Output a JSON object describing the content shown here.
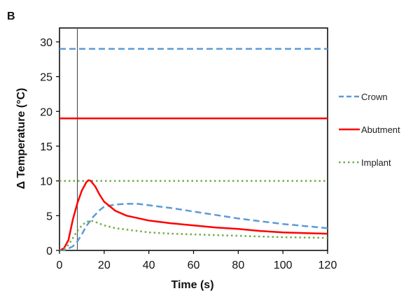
{
  "chart_data": {
    "type": "line",
    "panel_label": "B",
    "xlabel": "Time (s)",
    "ylabel": "Δ Temperature  (°C)",
    "xlim": [
      0,
      120
    ],
    "ylim": [
      0,
      32
    ],
    "xticks": [
      0,
      20,
      40,
      60,
      80,
      100,
      120
    ],
    "yticks": [
      0,
      5,
      10,
      15,
      20,
      25,
      30
    ],
    "marker_line_x": 8,
    "legend_position": "right",
    "series": [
      {
        "name": "Crown",
        "color": "#5b9bd5",
        "style": "dashed",
        "threshold": 29,
        "x": [
          0,
          3,
          6,
          8,
          10,
          12,
          15,
          18,
          20,
          25,
          30,
          35,
          40,
          50,
          60,
          70,
          80,
          90,
          100,
          110,
          120
        ],
        "values": [
          0,
          0.1,
          0.6,
          1.3,
          2.3,
          3.5,
          4.8,
          5.8,
          6.3,
          6.6,
          6.7,
          6.7,
          6.5,
          6.1,
          5.6,
          5.1,
          4.6,
          4.2,
          3.8,
          3.5,
          3.2
        ]
      },
      {
        "name": "Abutment",
        "color": "#ff0000",
        "style": "solid",
        "threshold": 19,
        "x": [
          0,
          2,
          4,
          6,
          8,
          10,
          12,
          13,
          14,
          16,
          18,
          20,
          25,
          30,
          40,
          50,
          60,
          70,
          80,
          90,
          100,
          110,
          120
        ],
        "values": [
          0,
          0.3,
          1.5,
          4.5,
          6.8,
          8.6,
          9.8,
          10.1,
          10.0,
          9.2,
          8.0,
          7.0,
          5.7,
          5.0,
          4.3,
          3.9,
          3.6,
          3.3,
          3.1,
          2.8,
          2.6,
          2.5,
          2.4
        ]
      },
      {
        "name": "Implant",
        "color": "#70ad47",
        "style": "dotted",
        "threshold": 10,
        "x": [
          0,
          2,
          4,
          6,
          8,
          10,
          12,
          14,
          16,
          20,
          25,
          30,
          40,
          50,
          60,
          80,
          100,
          120
        ],
        "values": [
          0,
          0.2,
          0.8,
          1.8,
          2.8,
          3.6,
          4.1,
          4.3,
          4.1,
          3.6,
          3.2,
          3.0,
          2.6,
          2.4,
          2.3,
          2.1,
          1.9,
          1.8
        ]
      }
    ]
  }
}
